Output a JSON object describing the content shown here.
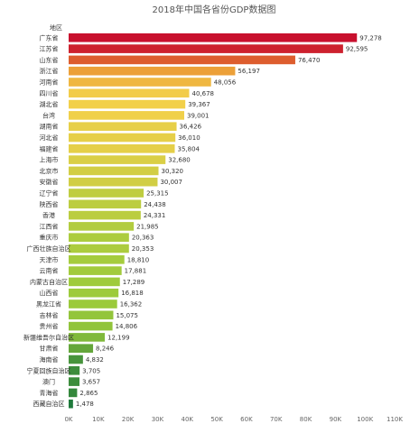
{
  "chart_data": {
    "type": "bar",
    "orientation": "horizontal",
    "title": "2018年中国各省份GDP数据图",
    "category_header": "地区",
    "categories": [
      "广东省",
      "江苏省",
      "山东省",
      "浙江省",
      "河南省",
      "四川省",
      "湖北省",
      "台湾",
      "湖南省",
      "河北省",
      "福建省",
      "上海市",
      "北京市",
      "安徽省",
      "辽宁省",
      "陕西省",
      "香港",
      "江西省",
      "重庆市",
      "广西壮族自治区",
      "天津市",
      "云南省",
      "内蒙古自治区",
      "山西省",
      "黑龙江省",
      "吉林省",
      "贵州省",
      "新疆维吾尔自治区",
      "甘肃省",
      "海南省",
      "宁夏回族自治区",
      "澳门",
      "青海省",
      "西藏自治区"
    ],
    "values": [
      97278,
      92595,
      76470,
      56197,
      48056,
      40678,
      39367,
      39001,
      36426,
      36010,
      35804,
      32680,
      30320,
      30007,
      25315,
      24438,
      24331,
      21985,
      20363,
      20353,
      18810,
      17881,
      17289,
      16818,
      16362,
      15075,
      14806,
      12199,
      8246,
      4832,
      3705,
      3657,
      2865,
      1478
    ],
    "value_labels": [
      "97,278",
      "92,595",
      "76,470",
      "56,197",
      "48,056",
      "40,678",
      "39,367",
      "39,001",
      "36,426",
      "36,010",
      "35,804",
      "32,680",
      "30,320",
      "30,007",
      "25,315",
      "24,438",
      "24,331",
      "21,985",
      "20,363",
      "20,353",
      "18,810",
      "17,881",
      "17,289",
      "16,818",
      "16,362",
      "15,075",
      "14,806",
      "12,199",
      "8,246",
      "4,832",
      "3,705",
      "3,657",
      "2,865",
      "1,478"
    ],
    "x_ticks": [
      "0K",
      "10K",
      "20K",
      "30K",
      "40K",
      "50K",
      "60K",
      "70K",
      "80K",
      "90K",
      "100K",
      "110K"
    ],
    "xlim": [
      0,
      110000
    ],
    "grid": false,
    "color_scale": [
      "#1f7a3c",
      "#9ccb3b",
      "#f2d04a",
      "#e8832e",
      "#c8102e"
    ]
  }
}
